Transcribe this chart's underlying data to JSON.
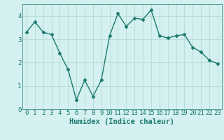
{
  "x": [
    0,
    1,
    2,
    3,
    4,
    5,
    6,
    7,
    8,
    9,
    10,
    11,
    12,
    13,
    14,
    15,
    16,
    17,
    18,
    19,
    20,
    21,
    22,
    23
  ],
  "y": [
    3.3,
    3.75,
    3.3,
    3.2,
    2.4,
    1.7,
    0.4,
    1.25,
    0.55,
    1.25,
    3.15,
    4.1,
    3.55,
    3.9,
    3.85,
    4.25,
    3.15,
    3.05,
    3.15,
    3.2,
    2.65,
    2.45,
    2.1,
    1.95
  ],
  "line_color": "#1a7a6e",
  "marker": "D",
  "marker_size": 2.5,
  "bg_color": "#d4f0f0",
  "grid_color": "#b0d8d0",
  "xlabel": "Humidex (Indice chaleur)",
  "ylim": [
    0,
    4.5
  ],
  "xlim": [
    -0.5,
    23.5
  ],
  "yticks": [
    0,
    1,
    2,
    3,
    4
  ],
  "xticks": [
    0,
    1,
    2,
    3,
    4,
    5,
    6,
    7,
    8,
    9,
    10,
    11,
    12,
    13,
    14,
    15,
    16,
    17,
    18,
    19,
    20,
    21,
    22,
    23
  ],
  "tick_label_fontsize": 6.5,
  "xlabel_fontsize": 7.5,
  "line_width": 1.0
}
